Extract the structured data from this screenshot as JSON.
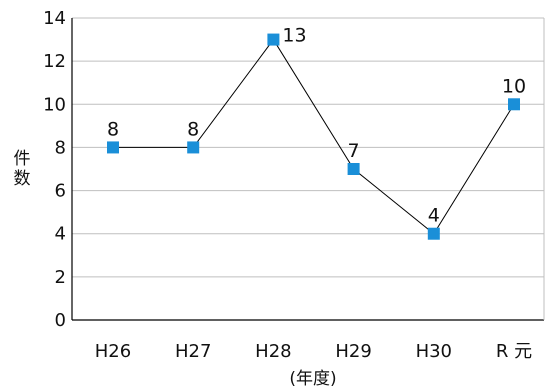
{
  "chart_data": {
    "type": "line",
    "categories": [
      "H26",
      "H27",
      "H28",
      "H29",
      "H30",
      "R 元"
    ],
    "series": [
      {
        "values": [
          8,
          8,
          13,
          7,
          4,
          10
        ]
      }
    ],
    "data_labels": [
      "8",
      "8",
      "13",
      "7",
      "4",
      "10"
    ],
    "title": "",
    "xlabel": "(年度)",
    "ylabel": "件数",
    "ylim": [
      0,
      14
    ],
    "yticks": [
      0,
      2,
      4,
      6,
      8,
      10,
      12,
      14
    ],
    "grid": "horizontal",
    "legend": "none",
    "colors": {
      "marker": "#1a8fd8",
      "line": "#000000",
      "grid": "#bfbfbf",
      "axis": "#000000"
    }
  }
}
